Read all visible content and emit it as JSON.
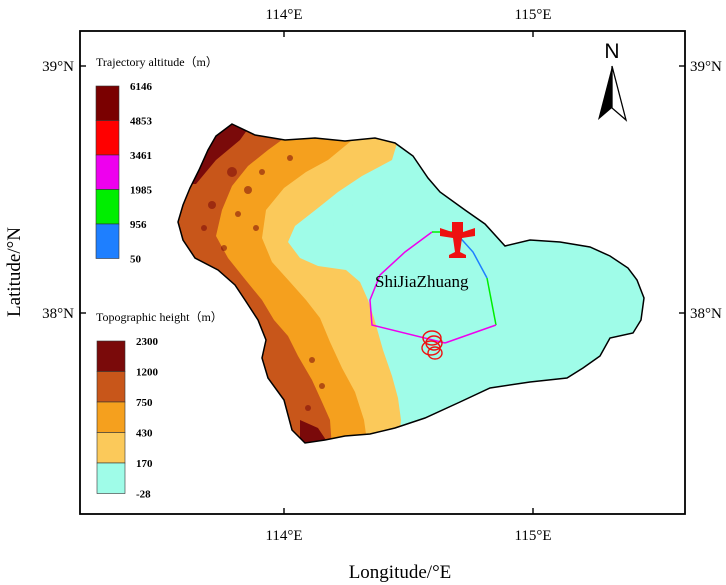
{
  "map": {
    "x_axis_label": "Longitude/°E",
    "y_axis_label": "Latitude/°N",
    "top_ticks": [
      "114°E",
      "115°E"
    ],
    "bottom_ticks": [
      "114°E",
      "115°E"
    ],
    "left_ticks": [
      "39°N",
      "38°N"
    ],
    "right_ticks": [
      "39°N",
      "38°N"
    ],
    "north_arrow_label": "N",
    "city_label": "ShiJiaZhuang"
  },
  "trajectory_legend": {
    "title": "Trajectory altitude（m）",
    "items": [
      {
        "label": "6146",
        "color": "#7a0000"
      },
      {
        "label": "4853",
        "color": "#ff0000"
      },
      {
        "label": "3461",
        "color": "#ee00ee"
      },
      {
        "label": "1985",
        "color": "#00ee00"
      },
      {
        "label": "956",
        "color": "#1e7fff"
      },
      {
        "label": "50",
        "color": ""
      }
    ]
  },
  "topo_legend": {
    "title": "Topographic height（m）",
    "items": [
      {
        "label": "2300",
        "color": "#7a0a0a"
      },
      {
        "label": "1200",
        "color": "#c8561a"
      },
      {
        "label": "750",
        "color": "#f5a01e"
      },
      {
        "label": "430",
        "color": "#fbc95a"
      },
      {
        "label": "170",
        "color": "#9ffce8"
      },
      {
        "label": "-28",
        "color": ""
      }
    ]
  },
  "colors": {
    "plain": "#9ffce8",
    "aircraft": "#ee1111"
  }
}
